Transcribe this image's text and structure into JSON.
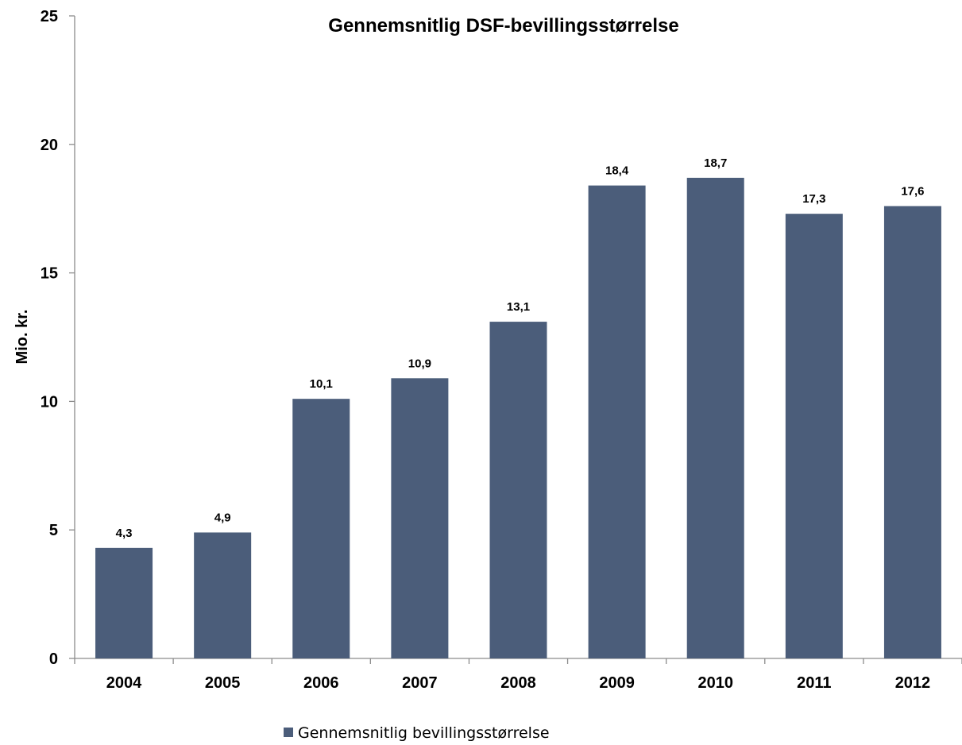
{
  "chart_data": {
    "type": "bar",
    "title": "Gennemsnitlig DSF-bevillingsstørrelse",
    "xlabel": "",
    "ylabel": "Mio. kr.",
    "categories": [
      "2004",
      "2005",
      "2006",
      "2007",
      "2008",
      "2009",
      "2010",
      "2011",
      "2012"
    ],
    "series": [
      {
        "name": "Gennemsnitlig bevillingsstørrelse",
        "values": [
          4.3,
          4.9,
          10.1,
          10.9,
          13.1,
          18.4,
          18.7,
          17.3,
          17.6
        ],
        "data_labels": [
          "4,3",
          "4,9",
          "10,1",
          "10,9",
          "13,1",
          "18,4",
          "18,7",
          "17,3",
          "17,6"
        ],
        "color": "#4b5d7a"
      }
    ],
    "ylim": [
      0,
      25
    ],
    "yticks": [
      0,
      5,
      10,
      15,
      20,
      25
    ],
    "ytick_labels": [
      "0",
      "5",
      "10",
      "15",
      "20",
      "25"
    ],
    "grid": false,
    "legend_position": "bottom"
  }
}
